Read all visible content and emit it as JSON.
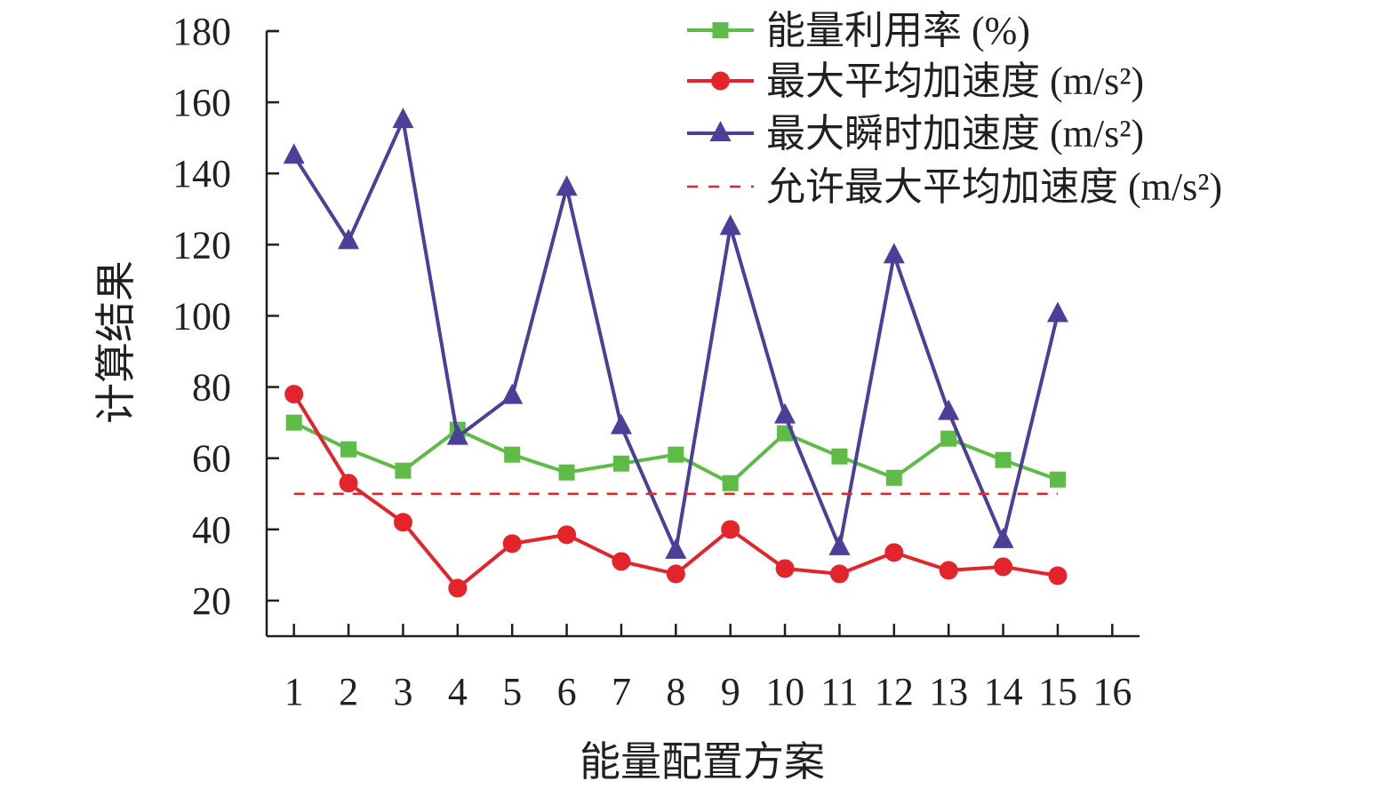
{
  "chart_data": {
    "type": "line",
    "title": "",
    "xlabel": "能量配置方案",
    "ylabel": "计算结果",
    "x": [
      1,
      2,
      3,
      4,
      5,
      6,
      7,
      8,
      9,
      10,
      11,
      12,
      13,
      14,
      15
    ],
    "x_ticks": [
      "1",
      "2",
      "3",
      "4",
      "5",
      "6",
      "7",
      "8",
      "9",
      "10",
      "11",
      "12",
      "13",
      "14",
      "15",
      "16"
    ],
    "xlim": [
      0.5,
      16.5
    ],
    "y_ticks": [
      "20",
      "40",
      "60",
      "80",
      "100",
      "120",
      "140",
      "160",
      "180"
    ],
    "ylim": [
      10,
      180
    ],
    "grid": false,
    "legend_position": "top-right",
    "series": [
      {
        "name": "能量利用率 (%)",
        "marker": "square",
        "color": "#5dbb46",
        "values": [
          70,
          62.5,
          56.5,
          68,
          61,
          56,
          58.5,
          61,
          53,
          67,
          60.5,
          54.5,
          65.5,
          59.5,
          54
        ]
      },
      {
        "name": "最大平均加速度 (m/s²)",
        "marker": "circle",
        "color": "#e3242b",
        "values": [
          78,
          53,
          42,
          23.5,
          36,
          38.5,
          31,
          27.5,
          40,
          29,
          27.5,
          33.5,
          28.5,
          29.5,
          27
        ]
      },
      {
        "name": "最大瞬时加速度 (m/s²)",
        "marker": "triangle",
        "color": "#4b3f99",
        "values": [
          145,
          121,
          155,
          66,
          77.5,
          136,
          69,
          34,
          125,
          72,
          35,
          117,
          73,
          37,
          100.5
        ]
      },
      {
        "name": "允许最大平均加速度 (m/s²)",
        "marker": "none",
        "line_style": "dashed",
        "color": "#e3242b",
        "values": [
          50,
          50,
          50,
          50,
          50,
          50,
          50,
          50,
          50,
          50,
          50,
          50,
          50,
          50,
          50
        ]
      }
    ]
  }
}
